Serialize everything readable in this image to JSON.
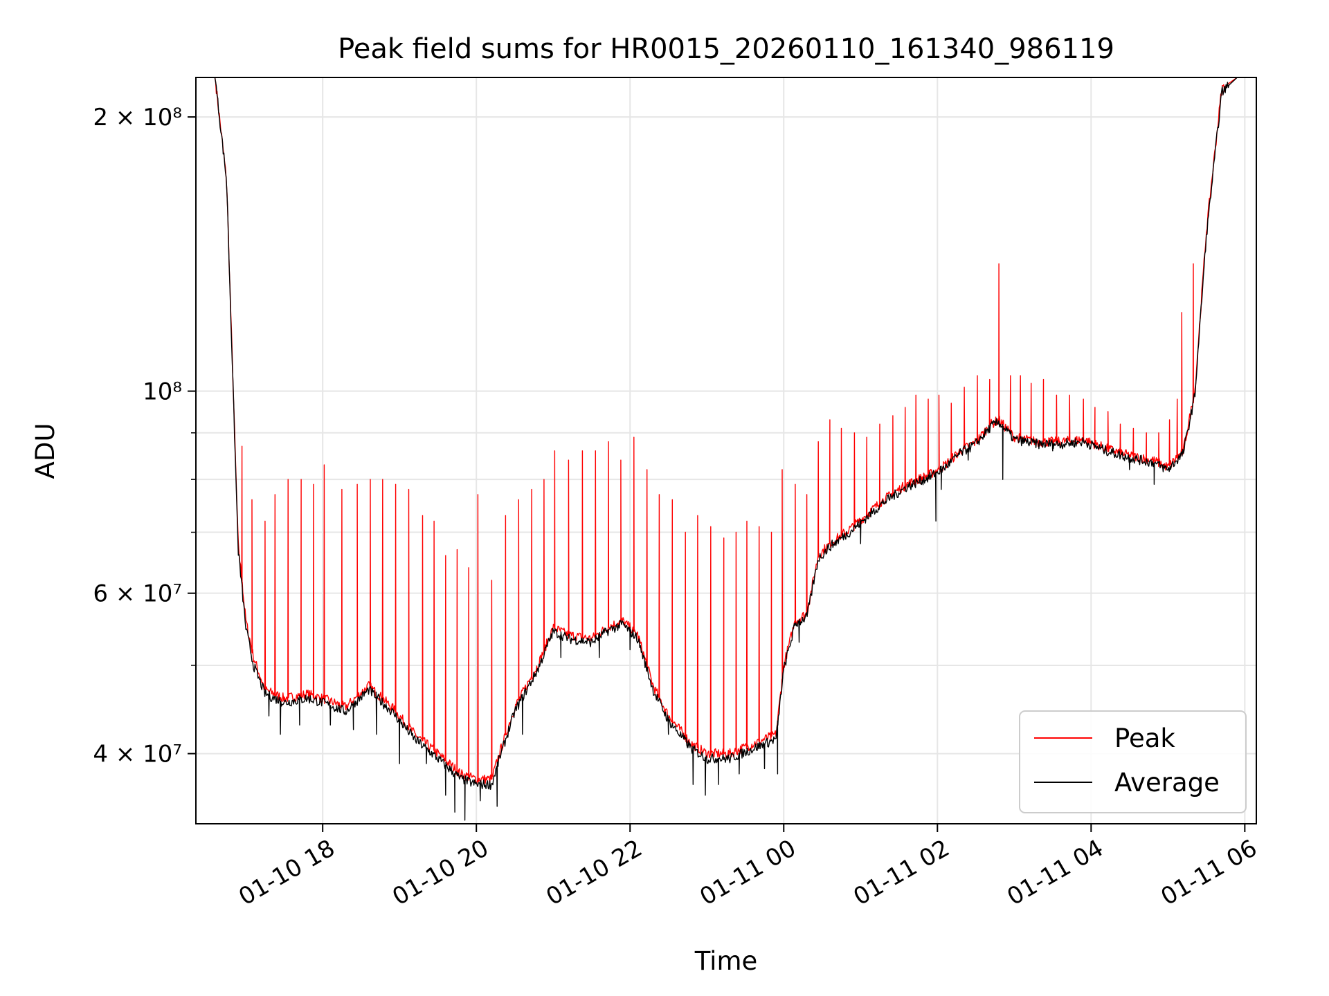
{
  "chart_data": {
    "type": "line",
    "title": "Peak field sums for HR0015_20260110_161340_986119",
    "xlabel": "Time",
    "ylabel": "ADU",
    "yscale": "log",
    "xlim_hours": [
      16.35,
      30.15
    ],
    "ylim": [
      33500000,
      221000000
    ],
    "grid": true,
    "legend_loc": "lower right",
    "x_ticks": [
      {
        "hour": 18,
        "label": "01-10 18"
      },
      {
        "hour": 20,
        "label": "01-10 20"
      },
      {
        "hour": 22,
        "label": "01-10 22"
      },
      {
        "hour": 24,
        "label": "01-11 00"
      },
      {
        "hour": 26,
        "label": "01-11 02"
      },
      {
        "hour": 28,
        "label": "01-11 04"
      },
      {
        "hour": 30,
        "label": "01-11 06"
      }
    ],
    "y_ticks_major": [
      {
        "value": 40000000,
        "label": "4 × 10⁷"
      },
      {
        "value": 60000000,
        "label": "6 × 10⁷"
      },
      {
        "value": 100000000,
        "label": "10⁸"
      },
      {
        "value": 200000000,
        "label": "2 × 10⁸"
      }
    ],
    "y_ticks_minor": [
      50000000,
      70000000,
      80000000,
      90000000
    ],
    "series": [
      {
        "name": "Peak",
        "color": "#ff0000",
        "baseline_hours": [
          16.35,
          16.6,
          16.75,
          16.9,
          17.0,
          17.1,
          17.25,
          17.5,
          17.8,
          18.0,
          18.3,
          18.6,
          18.9,
          19.2,
          19.5,
          19.8,
          20.0,
          20.2,
          20.3,
          20.5,
          20.8,
          21.0,
          21.2,
          21.5,
          21.7,
          21.9,
          22.1,
          22.3,
          22.5,
          22.8,
          23.0,
          23.3,
          23.6,
          23.9,
          24.0,
          24.15,
          24.3,
          24.45,
          24.6,
          24.9,
          25.3,
          25.6,
          25.9,
          26.1,
          26.3,
          26.5,
          26.7,
          26.8,
          27.0,
          27.3,
          27.6,
          27.9,
          28.2,
          28.5,
          28.8,
          29.0,
          29.2,
          29.35,
          29.5,
          29.7,
          29.9,
          30.15
        ],
        "baseline_values": [
          221000000,
          221000000,
          170000000,
          68000000,
          56000000,
          51000000,
          47000000,
          46000000,
          46500000,
          46000000,
          45000000,
          47500000,
          45000000,
          42000000,
          40000000,
          38000000,
          37500000,
          37500000,
          40000000,
          45000000,
          50000000,
          55000000,
          54000000,
          53500000,
          55000000,
          56000000,
          54000000,
          47500000,
          44000000,
          41000000,
          40000000,
          40000000,
          41000000,
          42000000,
          50000000,
          56000000,
          57000000,
          66000000,
          68000000,
          71000000,
          76000000,
          79000000,
          81000000,
          83000000,
          86000000,
          88000000,
          92000000,
          93000000,
          89000000,
          88000000,
          88000000,
          88500000,
          86500000,
          85000000,
          84000000,
          82500000,
          86000000,
          100000000,
          150000000,
          215000000,
          221000000,
          221000000
        ],
        "spikes": [
          {
            "hour": 16.95,
            "value": 87000000
          },
          {
            "hour": 17.08,
            "value": 76000000
          },
          {
            "hour": 17.25,
            "value": 72000000
          },
          {
            "hour": 17.38,
            "value": 77000000
          },
          {
            "hour": 17.55,
            "value": 80000000
          },
          {
            "hour": 17.72,
            "value": 80000000
          },
          {
            "hour": 17.88,
            "value": 79000000
          },
          {
            "hour": 18.02,
            "value": 83000000
          },
          {
            "hour": 18.25,
            "value": 78000000
          },
          {
            "hour": 18.45,
            "value": 79000000
          },
          {
            "hour": 18.62,
            "value": 80000000
          },
          {
            "hour": 18.78,
            "value": 80000000
          },
          {
            "hour": 18.95,
            "value": 79000000
          },
          {
            "hour": 19.12,
            "value": 78000000
          },
          {
            "hour": 19.3,
            "value": 73000000
          },
          {
            "hour": 19.45,
            "value": 72000000
          },
          {
            "hour": 19.6,
            "value": 66000000
          },
          {
            "hour": 19.75,
            "value": 67000000
          },
          {
            "hour": 19.9,
            "value": 64000000
          },
          {
            "hour": 20.02,
            "value": 77000000
          },
          {
            "hour": 20.2,
            "value": 62000000
          },
          {
            "hour": 20.38,
            "value": 73000000
          },
          {
            "hour": 20.55,
            "value": 76000000
          },
          {
            "hour": 20.72,
            "value": 78000000
          },
          {
            "hour": 20.88,
            "value": 80000000
          },
          {
            "hour": 21.02,
            "value": 86000000
          },
          {
            "hour": 21.2,
            "value": 84000000
          },
          {
            "hour": 21.38,
            "value": 86000000
          },
          {
            "hour": 21.55,
            "value": 86000000
          },
          {
            "hour": 21.72,
            "value": 88000000
          },
          {
            "hour": 21.88,
            "value": 84000000
          },
          {
            "hour": 22.05,
            "value": 89000000
          },
          {
            "hour": 22.22,
            "value": 82000000
          },
          {
            "hour": 22.38,
            "value": 77000000
          },
          {
            "hour": 22.55,
            "value": 76000000
          },
          {
            "hour": 22.72,
            "value": 70000000
          },
          {
            "hour": 22.88,
            "value": 73000000
          },
          {
            "hour": 23.05,
            "value": 71000000
          },
          {
            "hour": 23.22,
            "value": 69000000
          },
          {
            "hour": 23.38,
            "value": 70000000
          },
          {
            "hour": 23.52,
            "value": 72000000
          },
          {
            "hour": 23.68,
            "value": 71000000
          },
          {
            "hour": 23.84,
            "value": 70000000
          },
          {
            "hour": 23.98,
            "value": 82000000
          },
          {
            "hour": 24.15,
            "value": 79000000
          },
          {
            "hour": 24.3,
            "value": 77000000
          },
          {
            "hour": 24.45,
            "value": 88000000
          },
          {
            "hour": 24.6,
            "value": 93000000
          },
          {
            "hour": 24.75,
            "value": 91000000
          },
          {
            "hour": 24.92,
            "value": 90000000
          },
          {
            "hour": 25.08,
            "value": 89000000
          },
          {
            "hour": 25.25,
            "value": 92000000
          },
          {
            "hour": 25.42,
            "value": 94000000
          },
          {
            "hour": 25.58,
            "value": 96000000
          },
          {
            "hour": 25.72,
            "value": 99000000
          },
          {
            "hour": 25.88,
            "value": 98000000
          },
          {
            "hour": 26.02,
            "value": 99000000
          },
          {
            "hour": 26.18,
            "value": 97000000
          },
          {
            "hour": 26.35,
            "value": 101000000
          },
          {
            "hour": 26.52,
            "value": 104000000
          },
          {
            "hour": 26.68,
            "value": 103000000
          },
          {
            "hour": 26.8,
            "value": 138000000
          },
          {
            "hour": 26.95,
            "value": 104000000
          },
          {
            "hour": 27.08,
            "value": 104000000
          },
          {
            "hour": 27.22,
            "value": 102000000
          },
          {
            "hour": 27.38,
            "value": 103000000
          },
          {
            "hour": 27.55,
            "value": 99000000
          },
          {
            "hour": 27.72,
            "value": 99000000
          },
          {
            "hour": 27.9,
            "value": 98000000
          },
          {
            "hour": 28.05,
            "value": 96000000
          },
          {
            "hour": 28.22,
            "value": 95000000
          },
          {
            "hour": 28.38,
            "value": 92000000
          },
          {
            "hour": 28.55,
            "value": 91000000
          },
          {
            "hour": 28.72,
            "value": 90000000
          },
          {
            "hour": 28.88,
            "value": 90000000
          },
          {
            "hour": 29.02,
            "value": 93000000
          },
          {
            "hour": 29.12,
            "value": 98000000
          },
          {
            "hour": 29.18,
            "value": 122000000
          },
          {
            "hour": 29.33,
            "value": 138000000
          }
        ]
      },
      {
        "name": "Average",
        "color": "#000000",
        "baseline_hours": [
          16.35,
          16.6,
          16.75,
          16.9,
          17.0,
          17.1,
          17.25,
          17.5,
          17.8,
          18.0,
          18.3,
          18.6,
          18.9,
          19.2,
          19.5,
          19.8,
          20.0,
          20.2,
          20.3,
          20.5,
          20.8,
          21.0,
          21.2,
          21.5,
          21.7,
          21.9,
          22.1,
          22.3,
          22.5,
          22.8,
          23.0,
          23.3,
          23.6,
          23.9,
          24.0,
          24.15,
          24.3,
          24.45,
          24.6,
          24.9,
          25.3,
          25.6,
          25.9,
          26.1,
          26.3,
          26.5,
          26.7,
          26.8,
          27.0,
          27.3,
          27.6,
          27.9,
          28.2,
          28.5,
          28.8,
          29.0,
          29.2,
          29.35,
          29.5,
          29.7,
          29.9,
          30.15
        ],
        "baseline_values": [
          221000000,
          221000000,
          170000000,
          67000000,
          55000000,
          50000000,
          46500000,
          45500000,
          46000000,
          45500000,
          44500000,
          47000000,
          44500000,
          41500000,
          39500000,
          37500000,
          37000000,
          37000000,
          39500000,
          44500000,
          49500000,
          54500000,
          53500000,
          53000000,
          54500000,
          55500000,
          53500000,
          47000000,
          43500000,
          40500000,
          39500000,
          39500000,
          40500000,
          41500000,
          49500000,
          55500000,
          56500000,
          65500000,
          67500000,
          70500000,
          75500000,
          78500000,
          80500000,
          82500000,
          85500000,
          87500000,
          91500000,
          92500000,
          88500000,
          87500000,
          87500000,
          88000000,
          86000000,
          84500000,
          83500000,
          82000000,
          85500000,
          99000000,
          148000000,
          213000000,
          221000000,
          221000000
        ],
        "dips": [
          {
            "hour": 17.3,
            "value": 44000000
          },
          {
            "hour": 17.45,
            "value": 42000000
          },
          {
            "hour": 17.7,
            "value": 43000000
          },
          {
            "hour": 18.1,
            "value": 43000000
          },
          {
            "hour": 18.4,
            "value": 42500000
          },
          {
            "hour": 18.7,
            "value": 42000000
          },
          {
            "hour": 19.0,
            "value": 39000000
          },
          {
            "hour": 19.35,
            "value": 39000000
          },
          {
            "hour": 19.6,
            "value": 36000000
          },
          {
            "hour": 19.72,
            "value": 34500000
          },
          {
            "hour": 19.85,
            "value": 33800000
          },
          {
            "hour": 20.05,
            "value": 35500000
          },
          {
            "hour": 20.27,
            "value": 35000000
          },
          {
            "hour": 20.6,
            "value": 42000000
          },
          {
            "hour": 21.1,
            "value": 51000000
          },
          {
            "hour": 21.6,
            "value": 51000000
          },
          {
            "hour": 22.0,
            "value": 52000000
          },
          {
            "hour": 22.5,
            "value": 42000000
          },
          {
            "hour": 22.82,
            "value": 37000000
          },
          {
            "hour": 22.98,
            "value": 36000000
          },
          {
            "hour": 23.15,
            "value": 37000000
          },
          {
            "hour": 23.42,
            "value": 38000000
          },
          {
            "hour": 23.75,
            "value": 38500000
          },
          {
            "hour": 23.92,
            "value": 38000000
          },
          {
            "hour": 24.2,
            "value": 53000000
          },
          {
            "hour": 25.0,
            "value": 68000000
          },
          {
            "hour": 25.98,
            "value": 72000000
          },
          {
            "hour": 26.05,
            "value": 78000000
          },
          {
            "hour": 26.4,
            "value": 84000000
          },
          {
            "hour": 26.85,
            "value": 80000000
          },
          {
            "hour": 27.5,
            "value": 86000000
          },
          {
            "hour": 28.5,
            "value": 82000000
          },
          {
            "hour": 28.82,
            "value": 79000000
          }
        ]
      }
    ]
  }
}
